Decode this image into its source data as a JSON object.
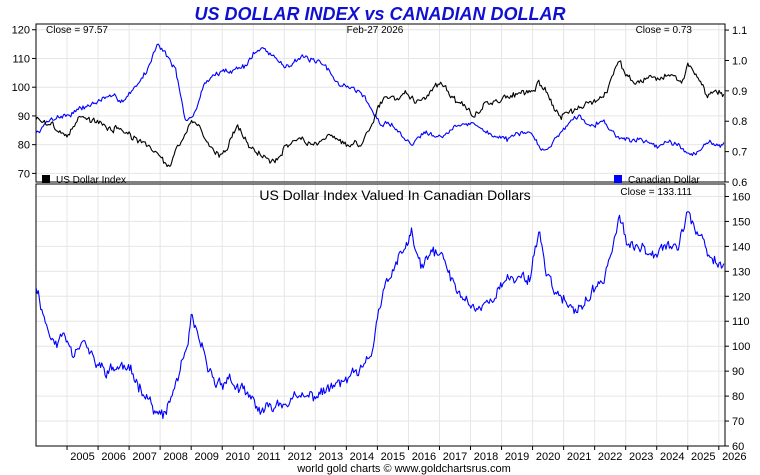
{
  "title": "US DOLLAR INDEX vs CANADIAN DOLLAR",
  "footer": "world gold charts © www.goldchartsrus.com",
  "colors": {
    "title": "#1010d0",
    "usd": "#000000",
    "cad": "#0000ff",
    "ratio": "#0000ff",
    "grid": "#e6e6e6"
  },
  "chart_data": [
    {
      "type": "line",
      "panel": "top",
      "date_label": "Feb-27  2026",
      "left_close": "Close = 97.57",
      "right_close": "Close = 0.73",
      "legend_left": "US Dollar Index",
      "legend_right": "Canadian Dollar",
      "x_range": [
        2004.0,
        2026.2
      ],
      "x_ticks": [
        "2005",
        "2006",
        "2007",
        "2008",
        "2009",
        "2010",
        "2011",
        "2012",
        "2013",
        "2014",
        "2015",
        "2016",
        "2017",
        "2018",
        "2019",
        "2020",
        "2021",
        "2022",
        "2023",
        "2024",
        "2025",
        "2026"
      ],
      "y_left": {
        "range": [
          67,
          122
        ],
        "ticks": [
          70,
          80,
          90,
          100,
          110,
          120
        ]
      },
      "y_right": {
        "range": [
          0.6,
          1.12
        ],
        "ticks": [
          0.6,
          0.7,
          0.8,
          0.9,
          1.0,
          1.1
        ],
        "tick_labels": [
          "0.6",
          "0.7",
          "0.8",
          "0.9",
          "1.0",
          "1.1"
        ]
      },
      "series": [
        {
          "name": "US Dollar Index",
          "axis": "left",
          "x": [
            2004.0,
            2004.5,
            2005.0,
            2005.4,
            2005.9,
            2006.3,
            2006.8,
            2007.2,
            2007.6,
            2008.0,
            2008.3,
            2008.6,
            2008.9,
            2009.2,
            2009.5,
            2009.9,
            2010.2,
            2010.5,
            2010.9,
            2011.3,
            2011.7,
            2012.0,
            2012.5,
            2012.9,
            2013.3,
            2013.8,
            2014.2,
            2014.5,
            2014.8,
            2015.1,
            2015.3,
            2015.6,
            2015.9,
            2016.2,
            2016.5,
            2016.8,
            2017.0,
            2017.4,
            2017.8,
            2018.1,
            2018.5,
            2018.9,
            2019.3,
            2019.7,
            2020.0,
            2020.2,
            2020.4,
            2020.7,
            2021.0,
            2021.4,
            2021.8,
            2022.1,
            2022.4,
            2022.8,
            2023.0,
            2023.4,
            2023.8,
            2024.1,
            2024.5,
            2024.8,
            2025.0,
            2025.3,
            2025.6,
            2025.9,
            2026.16
          ],
          "y": [
            89,
            87,
            83,
            90,
            88,
            86,
            85,
            82,
            79,
            76,
            72,
            80,
            86,
            88,
            81,
            76,
            80,
            87,
            79,
            76,
            74,
            79,
            82,
            80,
            83,
            81,
            80,
            81,
            86,
            95,
            97,
            96,
            99,
            96,
            95,
            100,
            102,
            97,
            93,
            90,
            94,
            96,
            97,
            98,
            98,
            102,
            99,
            93,
            90,
            92,
            94,
            96,
            99,
            110,
            104,
            102,
            104,
            103,
            104,
            101,
            108,
            104,
            98,
            99,
            97.57
          ]
        },
        {
          "name": "Canadian Dollar",
          "axis": "right",
          "x": [
            2004.0,
            2004.5,
            2005.0,
            2005.4,
            2005.9,
            2006.3,
            2006.8,
            2007.2,
            2007.6,
            2007.9,
            2008.2,
            2008.5,
            2008.8,
            2009.1,
            2009.4,
            2009.7,
            2010.0,
            2010.3,
            2010.7,
            2011.0,
            2011.3,
            2011.7,
            2012.0,
            2012.5,
            2012.9,
            2013.3,
            2013.8,
            2014.2,
            2014.6,
            2014.9,
            2015.1,
            2015.5,
            2015.9,
            2016.1,
            2016.5,
            2016.8,
            2017.1,
            2017.5,
            2017.9,
            2018.1,
            2018.5,
            2018.9,
            2019.3,
            2019.7,
            2020.0,
            2020.2,
            2020.4,
            2020.8,
            2021.2,
            2021.5,
            2021.9,
            2022.3,
            2022.8,
            2023.1,
            2023.5,
            2023.9,
            2024.3,
            2024.7,
            2025.0,
            2025.3,
            2025.6,
            2025.9,
            2026.16
          ],
          "y": [
            0.76,
            0.81,
            0.82,
            0.84,
            0.86,
            0.88,
            0.87,
            0.91,
            0.97,
            1.06,
            1.02,
            0.97,
            0.8,
            0.82,
            0.92,
            0.95,
            0.96,
            0.97,
            0.98,
            1.02,
            1.04,
            1.01,
            0.98,
            1.01,
            1.0,
            0.98,
            0.92,
            0.91,
            0.88,
            0.82,
            0.79,
            0.79,
            0.74,
            0.72,
            0.77,
            0.76,
            0.75,
            0.78,
            0.79,
            0.8,
            0.76,
            0.75,
            0.74,
            0.76,
            0.76,
            0.72,
            0.7,
            0.75,
            0.8,
            0.82,
            0.79,
            0.8,
            0.74,
            0.74,
            0.74,
            0.72,
            0.73,
            0.73,
            0.69,
            0.7,
            0.73,
            0.72,
            0.73
          ]
        }
      ]
    },
    {
      "type": "line",
      "panel": "bottom",
      "title": "US Dollar Index Valued In Canadian Dollars",
      "close": "Close = 133.111",
      "x_range": [
        2004.0,
        2026.2
      ],
      "y_range": [
        60,
        165
      ],
      "y_ticks": [
        60,
        70,
        80,
        90,
        100,
        110,
        120,
        130,
        140,
        150,
        160
      ],
      "series": [
        {
          "name": "",
          "x": [
            2004.0,
            2004.3,
            2004.6,
            2004.9,
            2005.2,
            2005.5,
            2005.9,
            2006.3,
            2006.8,
            2007.2,
            2007.6,
            2007.9,
            2008.2,
            2008.5,
            2008.9,
            2009.0,
            2009.2,
            2009.5,
            2009.8,
            2010.2,
            2010.6,
            2011.0,
            2011.3,
            2011.6,
            2012.0,
            2012.5,
            2012.9,
            2013.3,
            2013.8,
            2014.2,
            2014.5,
            2014.8,
            2015.0,
            2015.3,
            2015.6,
            2015.9,
            2016.1,
            2016.4,
            2016.8,
            2017.1,
            2017.5,
            2017.9,
            2018.2,
            2018.6,
            2018.9,
            2019.3,
            2019.7,
            2019.9,
            2020.2,
            2020.4,
            2020.7,
            2021.0,
            2021.3,
            2021.6,
            2021.9,
            2022.3,
            2022.6,
            2022.8,
            2023.1,
            2023.5,
            2023.9,
            2024.3,
            2024.7,
            2025.0,
            2025.3,
            2025.6,
            2025.9,
            2026.16
          ],
          "y": [
            125,
            110,
            100,
            105,
            98,
            103,
            93,
            90,
            92,
            87,
            80,
            72,
            73,
            85,
            100,
            110,
            105,
            92,
            85,
            87,
            82,
            78,
            73,
            76,
            78,
            79,
            80,
            82,
            85,
            88,
            90,
            96,
            112,
            125,
            132,
            140,
            145,
            131,
            138,
            136,
            123,
            118,
            115,
            118,
            123,
            127,
            128,
            127,
            147,
            132,
            123,
            118,
            113,
            117,
            120,
            128,
            141,
            152,
            139,
            140,
            138,
            142,
            139,
            155,
            145,
            138,
            133,
            133.1
          ]
        }
      ]
    }
  ]
}
